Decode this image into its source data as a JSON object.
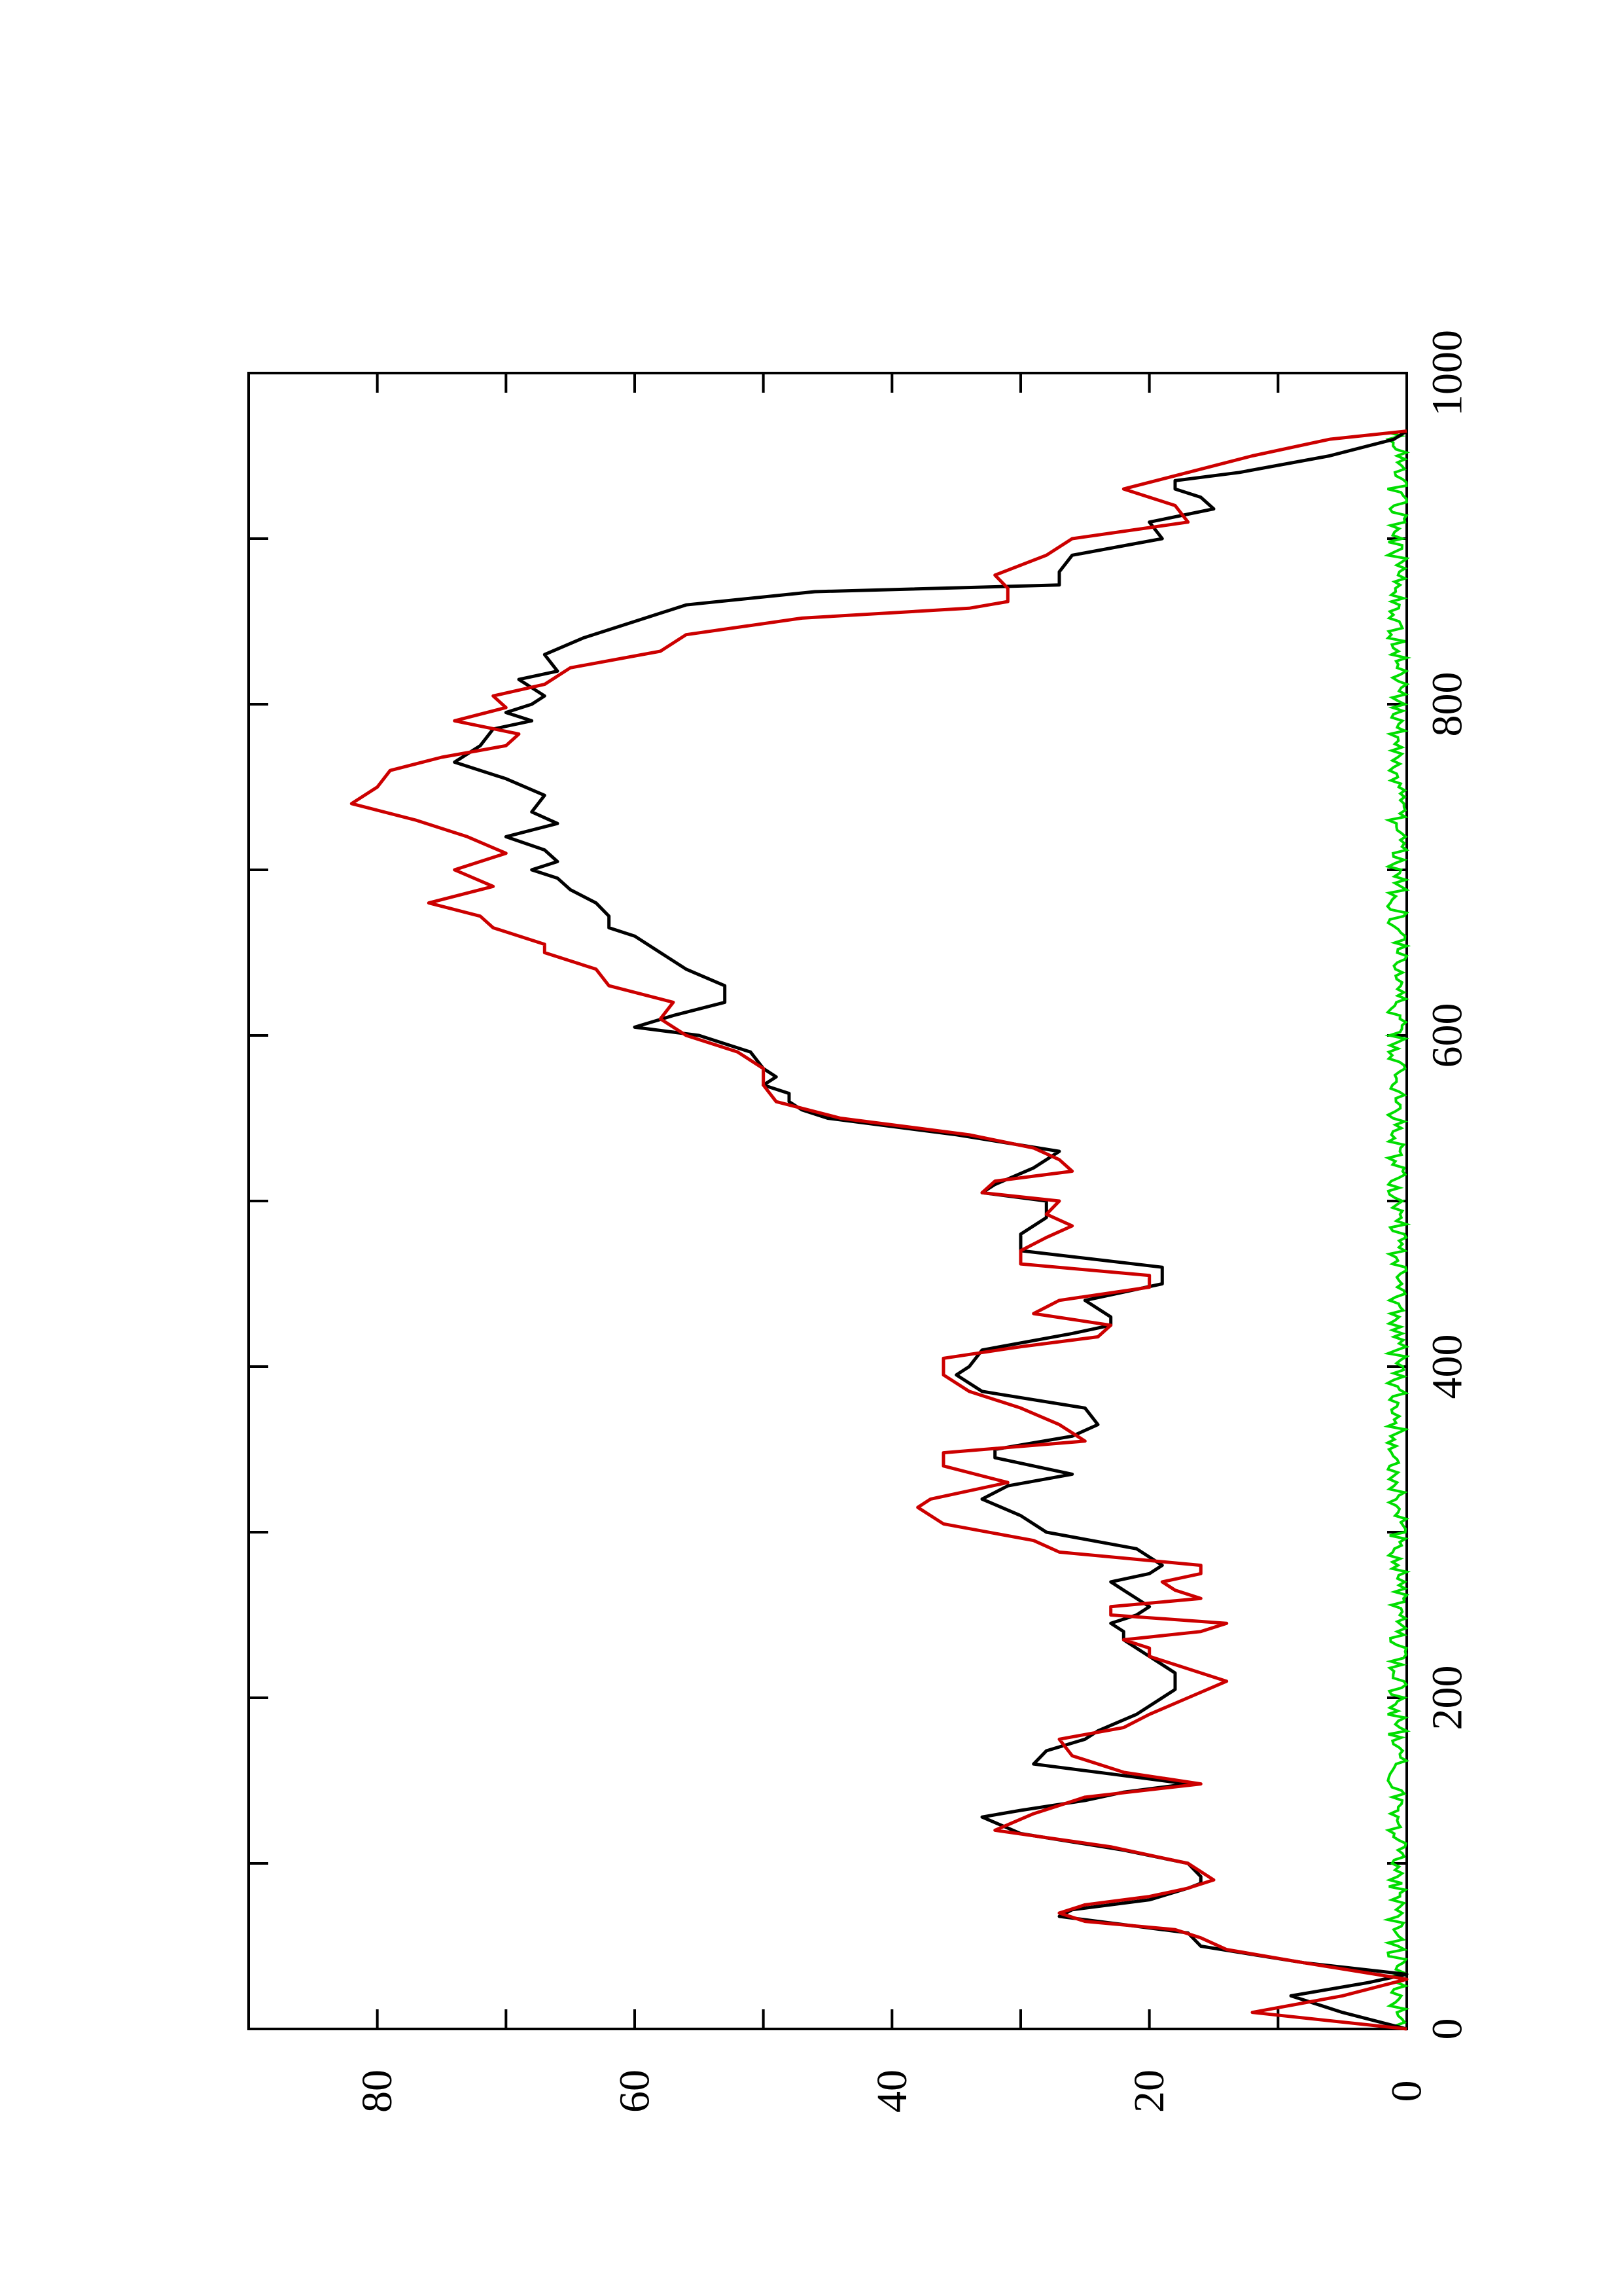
{
  "chart_data": {
    "type": "line",
    "orientation": "rotated-90-ccw",
    "title": "",
    "xlabel": "",
    "ylabel": "",
    "xlim": [
      0,
      1000
    ],
    "ylim": [
      0,
      90
    ],
    "x_ticks": [
      "0",
      "200",
      "400",
      "600",
      "800",
      "1000"
    ],
    "y_ticks": [
      "0",
      "20",
      "40",
      "60",
      "80"
    ],
    "grid": false,
    "legend": "none",
    "series": [
      {
        "color": "#000000",
        "x": [
          0,
          10,
          20,
          28,
          33,
          40,
          50,
          58,
          62,
          68,
          72,
          78,
          85,
          88,
          92,
          100,
          108,
          118,
          128,
          132,
          138,
          143,
          148,
          155,
          160,
          168,
          175,
          180,
          190,
          200,
          205,
          215,
          225,
          230,
          235,
          240,
          245,
          250,
          255,
          260,
          265,
          270,
          275,
          280,
          290,
          300,
          310,
          320,
          328,
          335,
          345,
          350,
          358,
          365,
          375,
          385,
          395,
          400,
          410,
          420,
          425,
          430,
          440,
          450,
          460,
          470,
          480,
          490,
          500,
          505,
          510,
          520,
          530,
          540,
          550,
          555,
          560,
          565,
          570,
          575,
          580,
          590,
          600,
          605,
          612,
          620,
          630,
          640,
          650,
          660,
          665,
          672,
          680,
          688,
          695,
          700,
          705,
          712,
          720,
          728,
          735,
          745,
          755,
          765,
          775,
          785,
          790,
          795,
          800,
          805,
          810,
          815,
          820,
          830,
          840,
          850,
          860,
          868,
          872,
          880,
          890,
          900,
          910,
          918,
          925,
          930,
          935,
          940,
          950,
          960,
          965
        ],
        "values": [
          0,
          5,
          9,
          3,
          0,
          8,
          16,
          17,
          21,
          27,
          26,
          20,
          17,
          16,
          16,
          17,
          22,
          30,
          33,
          30,
          25,
          22,
          17,
          24,
          29,
          28,
          25,
          24,
          21,
          19,
          18,
          18,
          20,
          21,
          22,
          22,
          23,
          21,
          20,
          21,
          22,
          23,
          20,
          19,
          21,
          28,
          30,
          33,
          31,
          26,
          32,
          32,
          26,
          24,
          25,
          33,
          35,
          34,
          33,
          26,
          23,
          23,
          25,
          19,
          19,
          30,
          30,
          28,
          28,
          33,
          32,
          29,
          27,
          35,
          45,
          47,
          48,
          48,
          50,
          49,
          50,
          51,
          55,
          60,
          57,
          53,
          53,
          56,
          58,
          60,
          62,
          62,
          63,
          65,
          66,
          68,
          66,
          67,
          70,
          66,
          68,
          67,
          70,
          74,
          72,
          71,
          68,
          70,
          68,
          67,
          68,
          69,
          66,
          67,
          64,
          60,
          56,
          46,
          27,
          27,
          26,
          19,
          20,
          15,
          16,
          18,
          18,
          13,
          6,
          1,
          0
        ]
      },
      {
        "color": "#cc0000",
        "x": [
          0,
          10,
          20,
          30,
          40,
          48,
          55,
          60,
          65,
          70,
          75,
          80,
          85,
          90,
          100,
          110,
          120,
          130,
          140,
          148,
          155,
          165,
          175,
          182,
          190,
          200,
          210,
          220,
          225,
          230,
          235,
          240,
          245,
          250,
          255,
          260,
          265,
          270,
          275,
          280,
          288,
          295,
          305,
          315,
          320,
          330,
          340,
          348,
          355,
          365,
          375,
          385,
          395,
          405,
          412,
          418,
          425,
          432,
          440,
          448,
          455,
          462,
          470,
          478,
          485,
          492,
          500,
          505,
          512,
          518,
          525,
          532,
          540,
          550,
          560,
          570,
          580,
          590,
          600,
          610,
          620,
          630,
          640,
          650,
          655,
          665,
          672,
          680,
          690,
          700,
          710,
          720,
          730,
          740,
          750,
          760,
          768,
          775,
          782,
          790,
          798,
          805,
          812,
          822,
          832,
          842,
          852,
          858,
          862,
          870,
          878,
          890,
          900,
          910,
          920,
          930,
          940,
          950,
          960,
          965
        ],
        "values": [
          0,
          12,
          5,
          0,
          8,
          14,
          16,
          18,
          25,
          27,
          25,
          20,
          17,
          15,
          17,
          23,
          32,
          29,
          25,
          16,
          22,
          26,
          27,
          22,
          20,
          17,
          14,
          18,
          20,
          20,
          22,
          16,
          14,
          23,
          23,
          16,
          18,
          19,
          16,
          16,
          27,
          29,
          36,
          38,
          37,
          31,
          36,
          36,
          25,
          27,
          30,
          34,
          36,
          36,
          30,
          24,
          23,
          29,
          27,
          20,
          20,
          30,
          30,
          28,
          26,
          28,
          27,
          33,
          32,
          26,
          27,
          29,
          34,
          44,
          49,
          50,
          50,
          52,
          56,
          58,
          57,
          62,
          63,
          67,
          67,
          71,
          72,
          76,
          71,
          74,
          70,
          73,
          77,
          82,
          80,
          79,
          75,
          70,
          69,
          74,
          70,
          71,
          67,
          65,
          58,
          56,
          47,
          34,
          31,
          31,
          32,
          28,
          26,
          17,
          18,
          22,
          17,
          12,
          6,
          0
        ]
      },
      {
        "color": "#00dd00",
        "noise_band": true,
        "x": [
          0,
          1000
        ],
        "values_range": [
          0,
          1.5
        ]
      }
    ]
  }
}
